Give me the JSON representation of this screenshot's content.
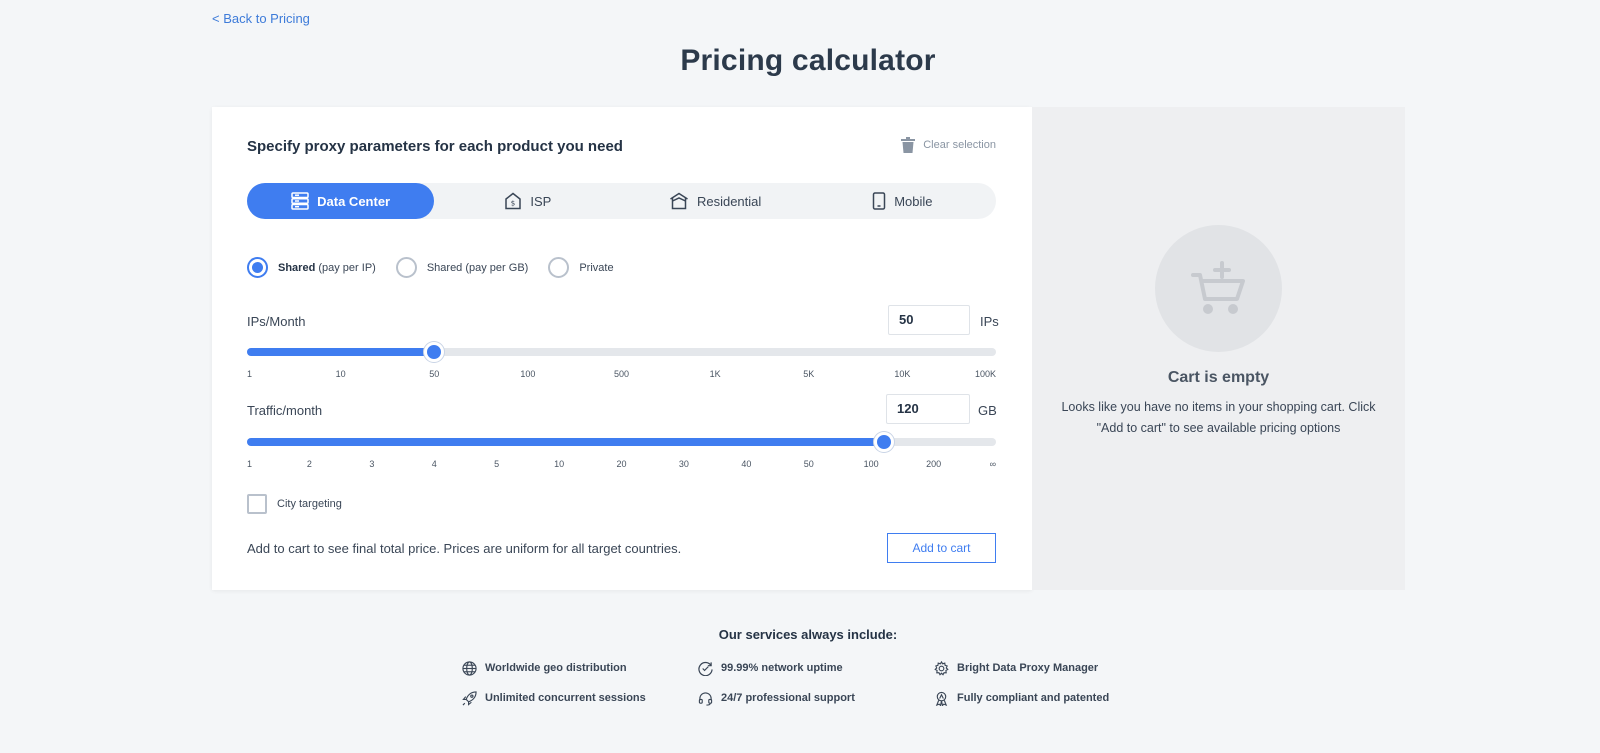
{
  "back_link": "< Back to Pricing",
  "page_title": "Pricing calculator",
  "calculator": {
    "heading": "Specify proxy parameters for each product you need",
    "clear_selection": "Clear selection",
    "tabs": [
      {
        "label": "Data Center",
        "icon": "server-icon",
        "active": true
      },
      {
        "label": "ISP",
        "icon": "house-shield-icon",
        "active": false
      },
      {
        "label": "Residential",
        "icon": "home-icon",
        "active": false
      },
      {
        "label": "Mobile",
        "icon": "phone-icon",
        "active": false
      }
    ],
    "radio_options": [
      {
        "bold": "Shared",
        "rest": " (pay per IP)",
        "selected": true
      },
      {
        "bold": "",
        "rest": "Shared (pay per GB)",
        "selected": false
      },
      {
        "bold": "",
        "rest": "Private",
        "selected": false
      }
    ],
    "ips": {
      "label": "IPs/Month",
      "value": "50",
      "unit": "IPs",
      "ticks": [
        "1",
        "10",
        "50",
        "100",
        "500",
        "1K",
        "5K",
        "10K",
        "100K"
      ],
      "selected_tick_index": 2
    },
    "traffic": {
      "label": "Traffic/month",
      "value": "120",
      "unit": "GB",
      "ticks": [
        "1",
        "2",
        "3",
        "4",
        "5",
        "10",
        "20",
        "30",
        "40",
        "50",
        "100",
        "200",
        "∞"
      ],
      "selected_position": 10.2
    },
    "city_targeting": "City targeting",
    "bottom_note": "Add to cart to see final total price. Prices are uniform for all target countries.",
    "add_to_cart": "Add to cart"
  },
  "cart": {
    "title": "Cart is empty",
    "description": "Looks like you have no items in your shopping cart. Click \"Add to cart\" to see available pricing options"
  },
  "services": {
    "title": "Our services always include:",
    "items": [
      {
        "label": "Worldwide geo distribution",
        "icon": "globe-icon"
      },
      {
        "label": "99.99% network uptime",
        "icon": "uptime-icon"
      },
      {
        "label": "Bright Data Proxy Manager",
        "icon": "gear-icon"
      },
      {
        "label": "Unlimited concurrent sessions",
        "icon": "rocket-icon"
      },
      {
        "label": "24/7 professional support",
        "icon": "headset-icon"
      },
      {
        "label": "Fully compliant and patented",
        "icon": "award-icon"
      }
    ]
  },
  "colors": {
    "accent": "#3f7df0",
    "text": "#2c3a4b",
    "background": "#f4f6f8"
  }
}
